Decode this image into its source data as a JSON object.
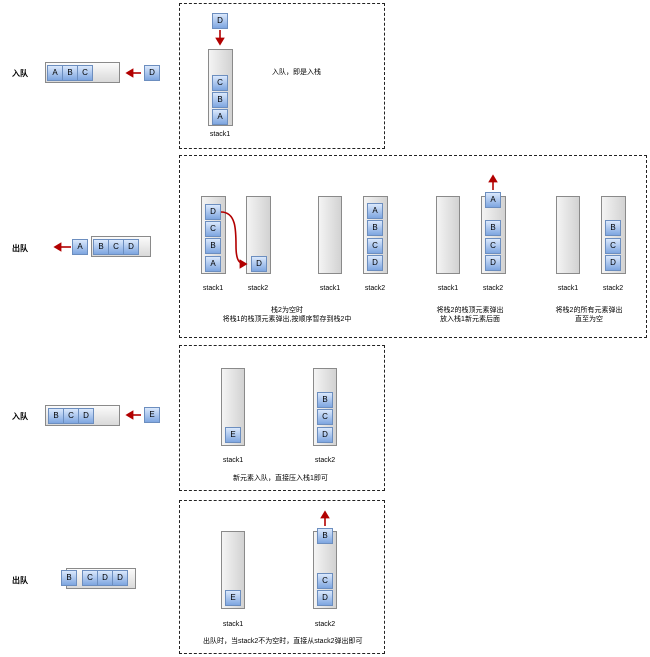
{
  "section1": {
    "label": "入队",
    "queue": [
      "A",
      "B",
      "C"
    ],
    "incoming": "D",
    "stack1": [
      "C",
      "B",
      "A"
    ],
    "stack_label": "stack1",
    "caption": "入队，即是入栈"
  },
  "section2": {
    "label": "出队",
    "out_item": "A",
    "queue": [
      "B",
      "C",
      "D"
    ],
    "step1": {
      "stack1": [
        "D",
        "C",
        "B",
        "A"
      ],
      "stack2": [
        "D"
      ],
      "stack1_label": "stack1",
      "stack2_label": "stack2",
      "caption_line1": "栈2为空时",
      "caption_line2": "将栈1的栈顶元素弹出,按顺序暂存到栈2中"
    },
    "step2": {
      "stack2": [
        "A",
        "B",
        "C",
        "D"
      ],
      "stack1_label": "stack1",
      "stack2_label": "stack2"
    },
    "step3": {
      "popped": "A",
      "stack2": [
        "B",
        "C",
        "D"
      ],
      "stack1_label": "stack1",
      "stack2_label": "stack2",
      "caption_line1": "将栈2的栈顶元素弹出",
      "caption_line2": "放入栈1新元素后面"
    },
    "step4": {
      "stack2": [
        "B",
        "C",
        "D"
      ],
      "stack1_label": "stack1",
      "stack2_label": "stack2",
      "caption_line1": "将栈2的所有元素弹出",
      "caption_line2": "直至为空"
    }
  },
  "section3": {
    "label": "入队",
    "queue": [
      "B",
      "C",
      "D"
    ],
    "incoming": "E",
    "stack1": [
      "E"
    ],
    "stack2": [
      "B",
      "C",
      "D"
    ],
    "stack1_label": "stack1",
    "stack2_label": "stack2",
    "caption": "新元素入队，直接压入栈1即可"
  },
  "section4": {
    "label": "出队",
    "queue": [
      "B",
      "C",
      "D",
      "D"
    ],
    "stack1": [
      "E"
    ],
    "stack2_top": "B",
    "stack2_bottom": [
      "C",
      "D"
    ],
    "stack1_label": "stack1",
    "stack2_label": "stack2",
    "caption": "出队时，当stack2不为空时，直接从stack2弹出即可"
  },
  "colors": {
    "arrow": "#b20000",
    "cell_border": "#6c8ebf",
    "cell_fill_top": "#dae8fc",
    "cell_fill_bottom": "#7ea6e0",
    "container_border": "#8a8a8a"
  }
}
